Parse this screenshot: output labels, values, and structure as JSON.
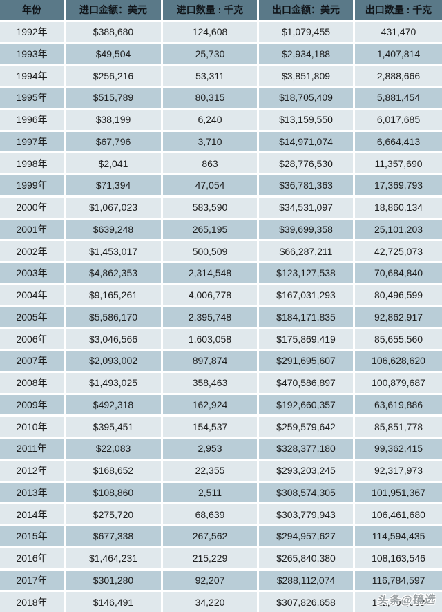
{
  "chart_data": {
    "type": "table",
    "columns": [
      "年份",
      "进口金额：美元",
      "进口数量 : 千克",
      "出口金额：美元",
      "出口数量 : 千克"
    ],
    "rows": [
      [
        "1992年",
        "$388,680",
        "124,608",
        "$1,079,455",
        "431,470"
      ],
      [
        "1993年",
        "$49,504",
        "25,730",
        "$2,934,188",
        "1,407,814"
      ],
      [
        "1994年",
        "$256,216",
        "53,311",
        "$3,851,809",
        "2,888,666"
      ],
      [
        "1995年",
        "$515,789",
        "80,315",
        "$18,705,409",
        "5,881,454"
      ],
      [
        "1996年",
        "$38,199",
        "6,240",
        "$13,159,550",
        "6,017,685"
      ],
      [
        "1997年",
        "$67,796",
        "3,710",
        "$14,971,074",
        "6,664,413"
      ],
      [
        "1998年",
        "$2,041",
        "863",
        "$28,776,530",
        "11,357,690"
      ],
      [
        "1999年",
        "$71,394",
        "47,054",
        "$36,781,363",
        "17,369,793"
      ],
      [
        "2000年",
        "$1,067,023",
        "583,590",
        "$34,531,097",
        "18,860,134"
      ],
      [
        "2001年",
        "$639,248",
        "265,195",
        "$39,699,358",
        "25,101,203"
      ],
      [
        "2002年",
        "$1,453,017",
        "500,509",
        "$66,287,211",
        "42,725,073"
      ],
      [
        "2003年",
        "$4,862,353",
        "2,314,548",
        "$123,127,538",
        "70,684,840"
      ],
      [
        "2004年",
        "$9,165,261",
        "4,006,778",
        "$167,031,293",
        "80,496,599"
      ],
      [
        "2005年",
        "$5,586,170",
        "2,395,748",
        "$184,171,835",
        "92,862,917"
      ],
      [
        "2006年",
        "$3,046,566",
        "1,603,058",
        "$175,869,419",
        "85,655,560"
      ],
      [
        "2007年",
        "$2,093,002",
        "897,874",
        "$291,695,607",
        "106,628,620"
      ],
      [
        "2008年",
        "$1,493,025",
        "358,463",
        "$470,586,897",
        "100,879,687"
      ],
      [
        "2009年",
        "$492,318",
        "162,924",
        "$192,660,357",
        "63,619,886"
      ],
      [
        "2010年",
        "$395,451",
        "154,537",
        "$259,579,642",
        "85,851,778"
      ],
      [
        "2011年",
        "$22,083",
        "2,953",
        "$328,377,180",
        "99,362,415"
      ],
      [
        "2012年",
        "$168,652",
        "22,355",
        "$293,203,245",
        "92,317,973"
      ],
      [
        "2013年",
        "$108,860",
        "2,511",
        "$308,574,305",
        "101,951,367"
      ],
      [
        "2014年",
        "$275,720",
        "68,639",
        "$303,779,943",
        "106,461,680"
      ],
      [
        "2015年",
        "$677,338",
        "267,562",
        "$294,957,627",
        "114,594,435"
      ],
      [
        "2016年",
        "$1,464,231",
        "215,229",
        "$265,840,380",
        "108,163,546"
      ],
      [
        "2017年",
        "$301,280",
        "92,207",
        "$288,112,074",
        "116,784,597"
      ],
      [
        "2018年",
        "$146,491",
        "34,220",
        "$307,826,658",
        "112,709,088"
      ]
    ]
  },
  "watermark": "头条@镜选",
  "colors": {
    "header_bg": "#5a7988",
    "row_light": "#e0e8ec",
    "row_dark": "#b9cdd7",
    "text": "#1d1d1d",
    "watermark": "#9aa0a3"
  }
}
